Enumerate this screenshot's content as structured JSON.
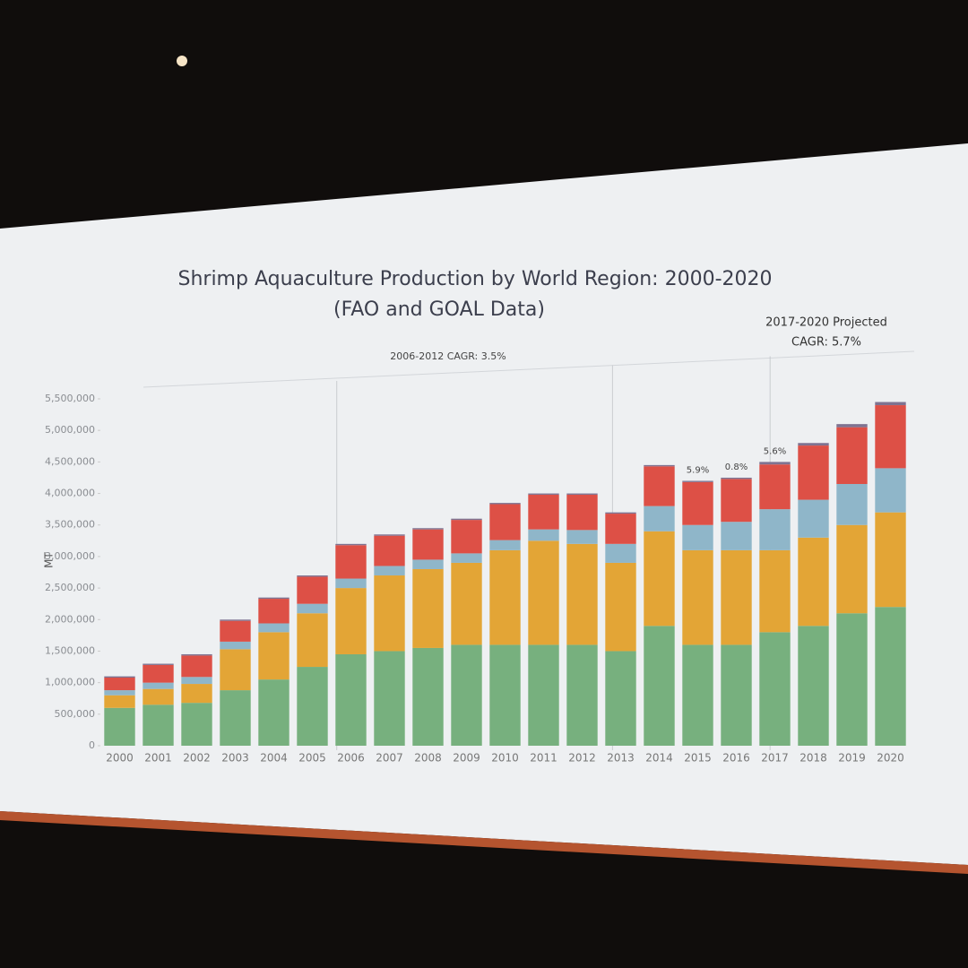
{
  "chart_data": {
    "type": "stacked_bar",
    "title": "Shrimp Aquaculture Production by World Region: 2000-2020",
    "subtitle": "(FAO and GOAL Data)",
    "y_label": "MT",
    "period_notes": [
      "2006-2012 CAGR: 3.5%",
      "2017-2020 Projected",
      "CAGR: 5.7%"
    ],
    "annotations": [
      "5.9%",
      "0.8%",
      "5.6%"
    ],
    "categories": [
      "2000",
      "2001",
      "2002",
      "2003",
      "2004",
      "2005",
      "2006",
      "2007",
      "2008",
      "2009",
      "2010",
      "2011",
      "2012",
      "2013",
      "2014",
      "2015",
      "2016",
      "2017",
      "2018",
      "2019",
      "2020"
    ],
    "series": [
      {
        "color": "#77b07e",
        "values": [
          600000,
          650000,
          680000,
          880000,
          1050000,
          1250000,
          1450000,
          1500000,
          1550000,
          1600000,
          1600000,
          1600000,
          1600000,
          1500000,
          1900000,
          1600000,
          1600000,
          1800000,
          1900000,
          2100000,
          2200000
        ]
      },
      {
        "color": "#e3a536",
        "values": [
          200000,
          250000,
          300000,
          650000,
          750000,
          850000,
          1050000,
          1200000,
          1250000,
          1300000,
          1500000,
          1650000,
          1600000,
          1400000,
          1500000,
          1500000,
          1500000,
          1300000,
          1400000,
          1400000,
          1500000
        ]
      },
      {
        "color": "#8fb6c9",
        "values": [
          80000,
          100000,
          110000,
          120000,
          140000,
          150000,
          150000,
          150000,
          150000,
          150000,
          160000,
          180000,
          220000,
          300000,
          400000,
          400000,
          450000,
          650000,
          600000,
          650000,
          700000
        ]
      },
      {
        "color": "#dd5046",
        "values": [
          200000,
          280000,
          340000,
          330000,
          390000,
          430000,
          530000,
          480000,
          480000,
          530000,
          570000,
          550000,
          560000,
          480000,
          630000,
          680000,
          680000,
          710000,
          860000,
          900000,
          1000000
        ]
      },
      {
        "color": "#7f7391",
        "values": [
          20000,
          20000,
          20000,
          20000,
          20000,
          20000,
          20000,
          20000,
          20000,
          20000,
          20000,
          20000,
          20000,
          20000,
          20000,
          20000,
          20000,
          40000,
          40000,
          50000,
          50000
        ]
      }
    ],
    "ylim": [
      0,
      5500000
    ],
    "yticks": [
      0,
      {
        "value": 500000,
        "label": "500,000"
      },
      {
        "value": 1000000,
        "label": "1,000,000"
      },
      {
        "value": 1500000,
        "label": "1,500,000"
      },
      {
        "value": 2000000,
        "label": "2,000,000"
      },
      {
        "value": 2500000,
        "label": "2,500,000"
      },
      {
        "value": 3000000,
        "label": "3,000,000"
      },
      {
        "value": 3500000,
        "label": "3,500,000"
      },
      {
        "value": 4000000,
        "label": "4,000,000"
      },
      {
        "value": 4500000,
        "label": "4,500,000"
      },
      {
        "value": 5000000,
        "label": "5,000,000"
      },
      {
        "value": 5500000,
        "label": "5,500,000"
      }
    ]
  }
}
